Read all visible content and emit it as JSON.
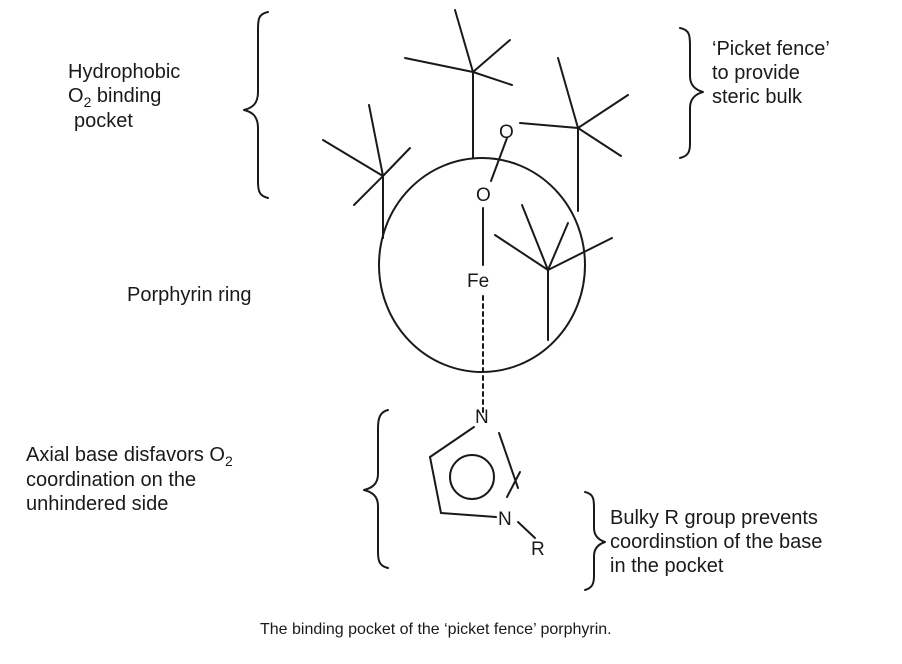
{
  "labels": {
    "hydrophobic": {
      "line1": "Hydrophobic",
      "o2_prefix": "O",
      "o2_sub": "2",
      "line2_rest": " binding",
      "line3": "pocket"
    },
    "picket_fence": {
      "line1": "‘Picket fence’",
      "line2": "to provide",
      "line3": "steric bulk"
    },
    "porphyrin": "Porphyrin ring",
    "axial_base": {
      "line1_prefix": "Axial base disfavors  O",
      "line1_sub": "2",
      "line2": "coordination on the",
      "line3": "unhindered side"
    },
    "bulky_r": {
      "line1": "Bulky R group prevents",
      "line2": "coordinstion of the base",
      "line3": "in the pocket"
    }
  },
  "atoms": {
    "oxygen_top": "O",
    "oxygen_bottom": "O",
    "iron": "Fe",
    "nitrogen_top": "N",
    "nitrogen_bottom": "N",
    "r_group": "R"
  },
  "caption": "The binding pocket of the ‘picket fence’ porphyrin.",
  "colors": {
    "line": "#1a1a1a",
    "text": "#1a1a1a",
    "background": "#ffffff"
  }
}
